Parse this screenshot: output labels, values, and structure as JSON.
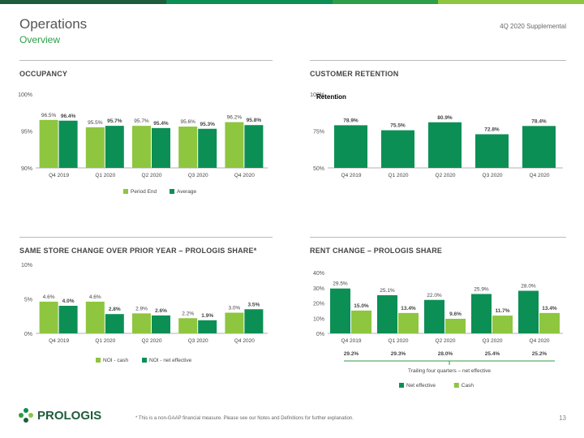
{
  "header": {
    "title": "Operations",
    "subtitle": "Overview",
    "doc_label": "4Q 2020 Supplemental"
  },
  "colors": {
    "dark_green": "#0c8f55",
    "light_green": "#8ec63f",
    "bar_navy": "#1f5c3c",
    "accent_green": "#2e9e47"
  },
  "sections": {
    "occupancy": "OCCUPANCY",
    "retention": "CUSTOMER RETENTION",
    "same_store": "SAME STORE CHANGE OVER PRIOR YEAR – PROLOGIS SHARE*",
    "rent_change": "RENT CHANGE – PROLOGIS SHARE"
  },
  "chart_data": [
    {
      "id": "occupancy",
      "type": "bar",
      "categories": [
        "Q4 2019",
        "Q1 2020",
        "Q2 2020",
        "Q3 2020",
        "Q4 2020"
      ],
      "series": [
        {
          "name": "Period End",
          "values": [
            96.5,
            95.5,
            95.7,
            95.6,
            96.2
          ],
          "labels": [
            "96.5%",
            "95.5%",
            "95.7%",
            "95.6%",
            "96.2%"
          ],
          "color": "#8ec63f"
        },
        {
          "name": "Average",
          "values": [
            96.4,
            95.7,
            95.4,
            95.3,
            95.8
          ],
          "labels": [
            "96.4%",
            "95.7%",
            "95.4%",
            "95.3%",
            "95.8%"
          ],
          "color": "#0c8f55"
        }
      ],
      "ylim": [
        90,
        100
      ],
      "yticks": [
        {
          "value": 100,
          "label": "100%"
        },
        {
          "value": 95,
          "label": "95%"
        },
        {
          "value": 90,
          "label": "90%"
        }
      ],
      "legend": "bottom"
    },
    {
      "id": "retention",
      "type": "bar",
      "categories": [
        "Q4 2019",
        "Q1 2020",
        "Q2 2020",
        "Q3 2020",
        "Q4 2020"
      ],
      "series": [
        {
          "name": "Retention",
          "values": [
            78.9,
            75.5,
            80.9,
            72.8,
            78.4
          ],
          "labels": [
            "78.9%",
            "75.5%",
            "80.9%",
            "72.8%",
            "78.4%"
          ],
          "color": "#0c8f55"
        }
      ],
      "ylim": [
        50,
        100
      ],
      "yticks": [
        {
          "value": 100,
          "label": "100%"
        },
        {
          "value": 75,
          "label": "75%"
        },
        {
          "value": 50,
          "label": "50%"
        }
      ],
      "legend": "top-left"
    },
    {
      "id": "same_store",
      "type": "bar",
      "categories": [
        "Q4 2019",
        "Q1 2020",
        "Q2 2020",
        "Q3 2020",
        "Q4 2020"
      ],
      "series": [
        {
          "name": "NOI - cash",
          "values": [
            4.6,
            4.6,
            2.9,
            2.2,
            3.0
          ],
          "labels": [
            "4.6%",
            "4.6%",
            "2.9%",
            "2.2%",
            "3.0%"
          ],
          "color": "#8ec63f"
        },
        {
          "name": "NOI - net effective",
          "values": [
            4.0,
            2.8,
            2.6,
            1.9,
            3.5
          ],
          "labels": [
            "4.0%",
            "2.8%",
            "2.6%",
            "1.9%",
            "3.5%"
          ],
          "color": "#0c8f55"
        }
      ],
      "ylim": [
        0,
        10
      ],
      "yticks": [
        {
          "value": 10,
          "label": "10%"
        },
        {
          "value": 5,
          "label": "5%"
        },
        {
          "value": 0,
          "label": "0%"
        }
      ],
      "legend": "bottom"
    },
    {
      "id": "rent_change",
      "type": "bar",
      "categories": [
        "Q4 2019",
        "Q1 2020",
        "Q2 2020",
        "Q3 2020",
        "Q4 2020"
      ],
      "series": [
        {
          "name": "Net effective",
          "values": [
            29.5,
            25.1,
            22.0,
            25.9,
            28.0
          ],
          "labels": [
            "29.5%",
            "25.1%",
            "22.0%",
            "25.9%",
            "28.0%"
          ],
          "color": "#0c8f55"
        },
        {
          "name": "Cash",
          "values": [
            15.0,
            13.4,
            9.6,
            11.7,
            13.4
          ],
          "labels": [
            "15.0%",
            "13.4%",
            "9.6%",
            "11.7%",
            "13.4%"
          ],
          "color": "#8ec63f"
        }
      ],
      "ylim": [
        0,
        40
      ],
      "yticks": [
        {
          "value": 40,
          "label": "40%"
        },
        {
          "value": 30,
          "label": "30%"
        },
        {
          "value": 20,
          "label": "20%"
        },
        {
          "value": 10,
          "label": "10%"
        },
        {
          "value": 0,
          "label": "0%"
        }
      ],
      "trailing": {
        "values": [
          "29.2%",
          "29.3%",
          "28.0%",
          "25.4%",
          "25.2%"
        ],
        "label": "Trailing four quarters – net effective"
      },
      "legend": "bottom"
    }
  ],
  "footer": {
    "logo": "PROLOGIS",
    "note": "*  This is a non-GAAP financial measure. Please see our Notes and Definitions for further explanation.",
    "page": "13"
  }
}
